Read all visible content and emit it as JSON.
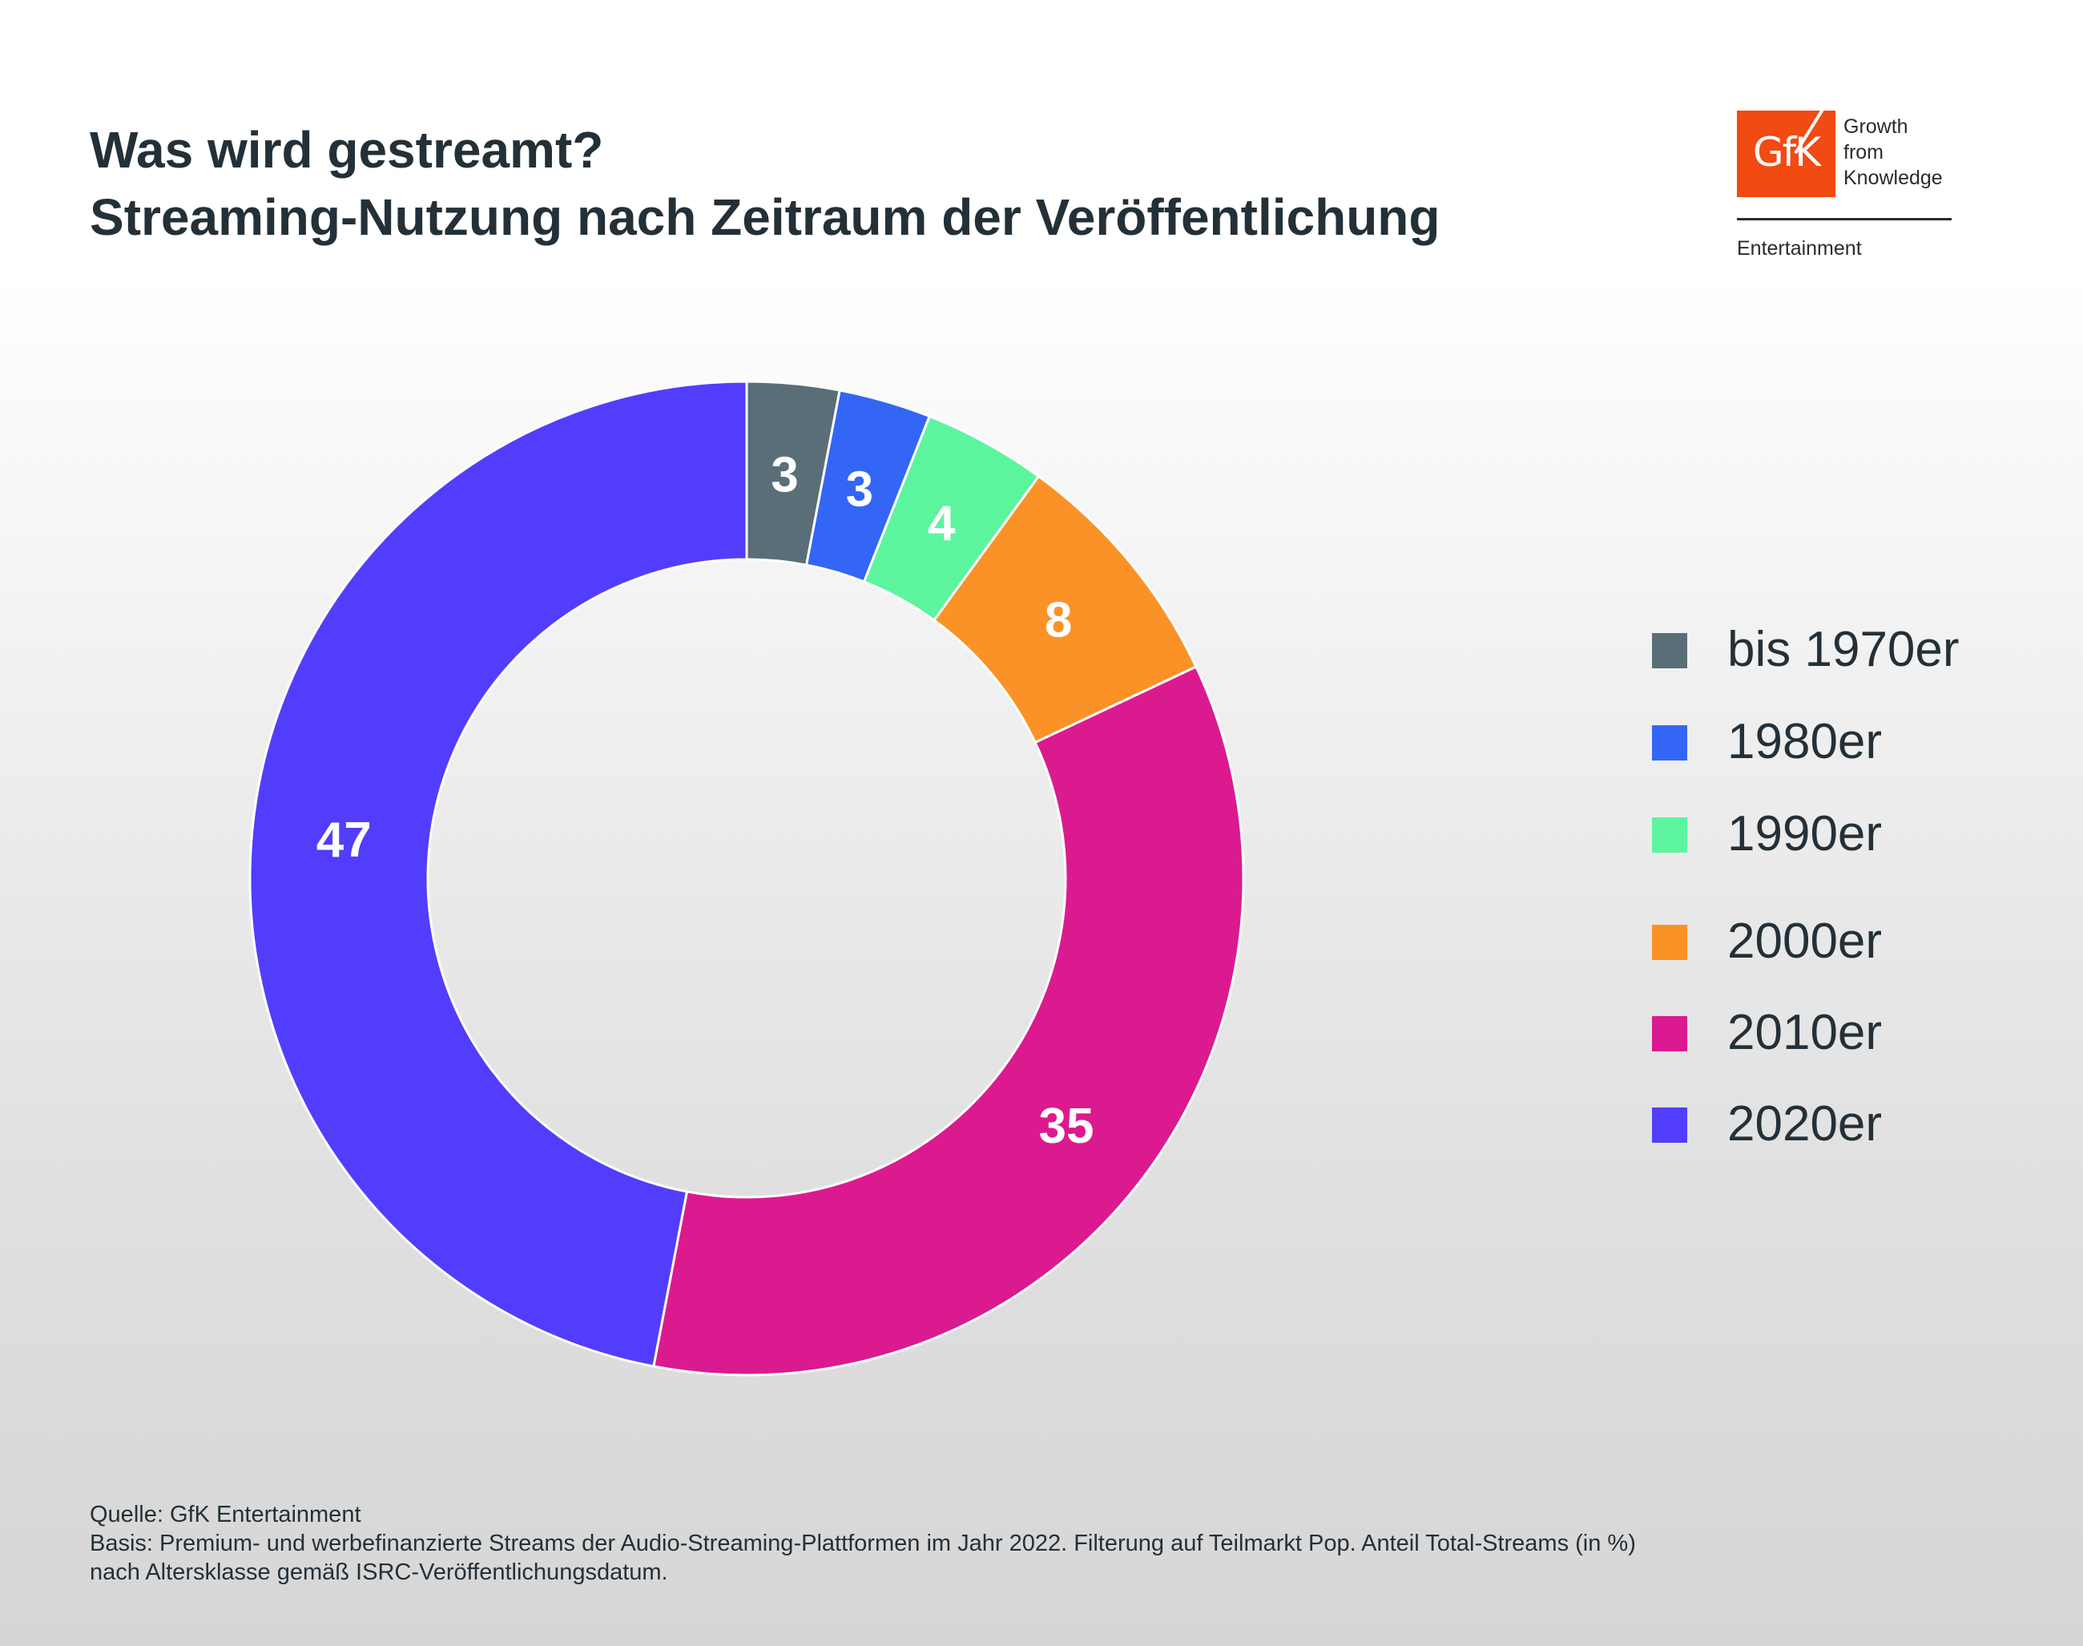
{
  "header": {
    "title_line1": "Was wird gestreamt?",
    "title_line2": "Streaming-Nutzung nach Zeitraum der Veröffentlichung"
  },
  "logo": {
    "mark": "GfK",
    "tagline": [
      "Growth",
      "from",
      "Knowledge"
    ],
    "division": "Entertainment",
    "color": "#f14a13"
  },
  "chart_data": {
    "type": "pie",
    "variant": "donut",
    "start": "top, clockwise",
    "categories": [
      "bis 1970er",
      "1980er",
      "1990er",
      "2000er",
      "2010er",
      "2020er"
    ],
    "values": [
      3,
      3,
      4,
      8,
      35,
      47
    ],
    "colors": [
      "#5a6e78",
      "#3366f5",
      "#5cf59e",
      "#fb9228",
      "#dc1a8f",
      "#523dfc"
    ],
    "data_labels": [
      "3",
      "3",
      "4",
      "8",
      "35",
      "47"
    ],
    "legend_position": "right"
  },
  "footer": {
    "source": "Quelle: GfK Entertainment",
    "basis_line1": "Basis: Premium- und werbefinanzierte Streams der Audio-Streaming-Plattformen im Jahr 2022. Filterung auf Teilmarkt Pop. Anteil Total-Streams (in %)",
    "basis_line2": "nach Altersklasse gemäß ISRC-Veröffentlichungsdatum."
  }
}
